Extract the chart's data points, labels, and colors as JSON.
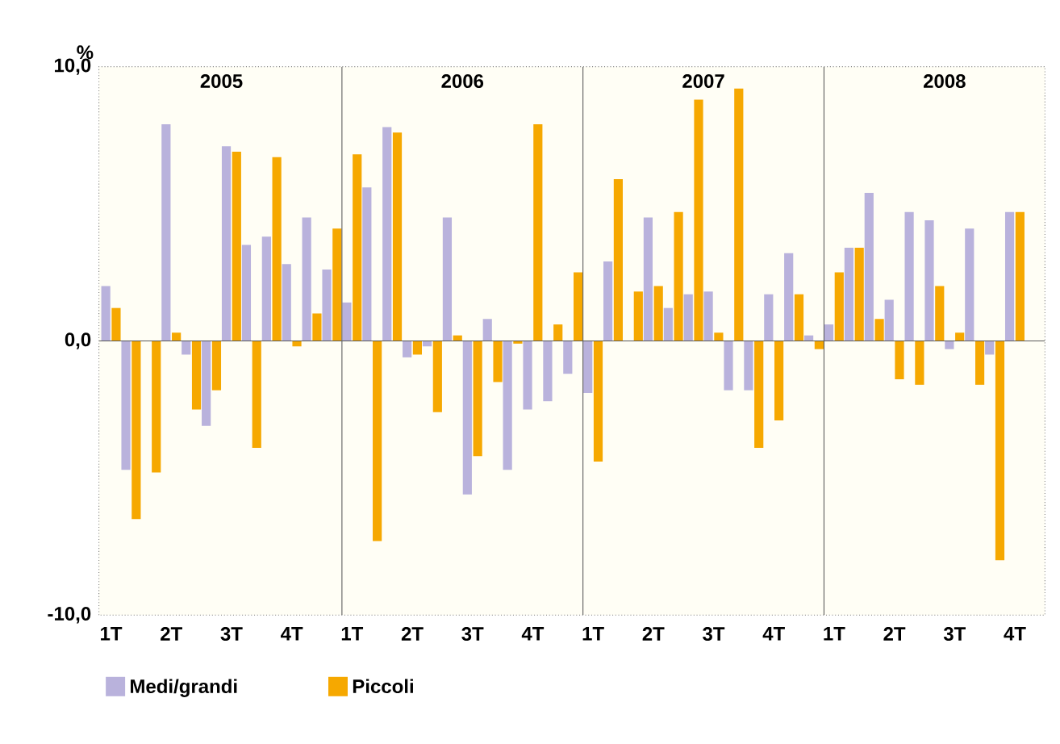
{
  "chart_data": {
    "type": "bar",
    "ylabel": "%",
    "categories": [
      "1T",
      null,
      null,
      "2T",
      null,
      null,
      "3T",
      null,
      null,
      "4T",
      null,
      null,
      "1T",
      null,
      null,
      "2T",
      null,
      null,
      "3T",
      null,
      null,
      "4T",
      null,
      null,
      "1T",
      null,
      null,
      "2T",
      null,
      null,
      "3T",
      null,
      null,
      "4T",
      null,
      null,
      "1T",
      null,
      null,
      "2T",
      null,
      null,
      "3T",
      null,
      null,
      "4T"
    ],
    "series": [
      {
        "name": "Medi/grandi",
        "color": "#b9b2dc",
        "values": [
          2.0,
          -4.7,
          null,
          7.9,
          -0.5,
          -3.1,
          7.1,
          3.5,
          3.8,
          2.8,
          4.5,
          2.6,
          1.4,
          5.6,
          7.8,
          -0.6,
          -0.2,
          4.5,
          -5.6,
          0.8,
          -4.7,
          -2.5,
          -2.2,
          -1.2,
          -1.9,
          2.9,
          null,
          4.5,
          1.2,
          1.7,
          1.8,
          -1.8,
          -1.8,
          1.7,
          3.2,
          0.2,
          0.6,
          3.4,
          5.4,
          1.5,
          4.7,
          4.4,
          -0.3,
          4.1,
          -0.5,
          4.7
        ]
      },
      {
        "name": "Piccoli",
        "color": "#f6a800",
        "values": [
          1.2,
          -6.5,
          -4.8,
          0.3,
          -2.5,
          -1.8,
          6.9,
          -3.9,
          6.7,
          -0.2,
          1.0,
          4.1,
          6.8,
          -7.3,
          7.6,
          -0.5,
          -2.6,
          0.2,
          -4.2,
          -1.5,
          -0.1,
          7.9,
          0.6,
          2.5,
          -4.4,
          5.9,
          1.8,
          2.0,
          4.7,
          8.8,
          0.3,
          9.2,
          -3.9,
          -2.9,
          1.7,
          -0.3,
          2.5,
          3.4,
          0.8,
          -1.4,
          -1.6,
          2.0,
          0.3,
          -1.6,
          -8.0,
          4.7
        ]
      }
    ],
    "ylim": [
      -10,
      10
    ],
    "yticks": [
      {
        "value": -10,
        "label": "-10,0"
      },
      {
        "value": 0,
        "label": "0,0"
      },
      {
        "value": 10,
        "label": "10,0"
      }
    ],
    "annotations": [
      "2005",
      "2006",
      "2007",
      "2008"
    ],
    "legend": "bottom"
  }
}
